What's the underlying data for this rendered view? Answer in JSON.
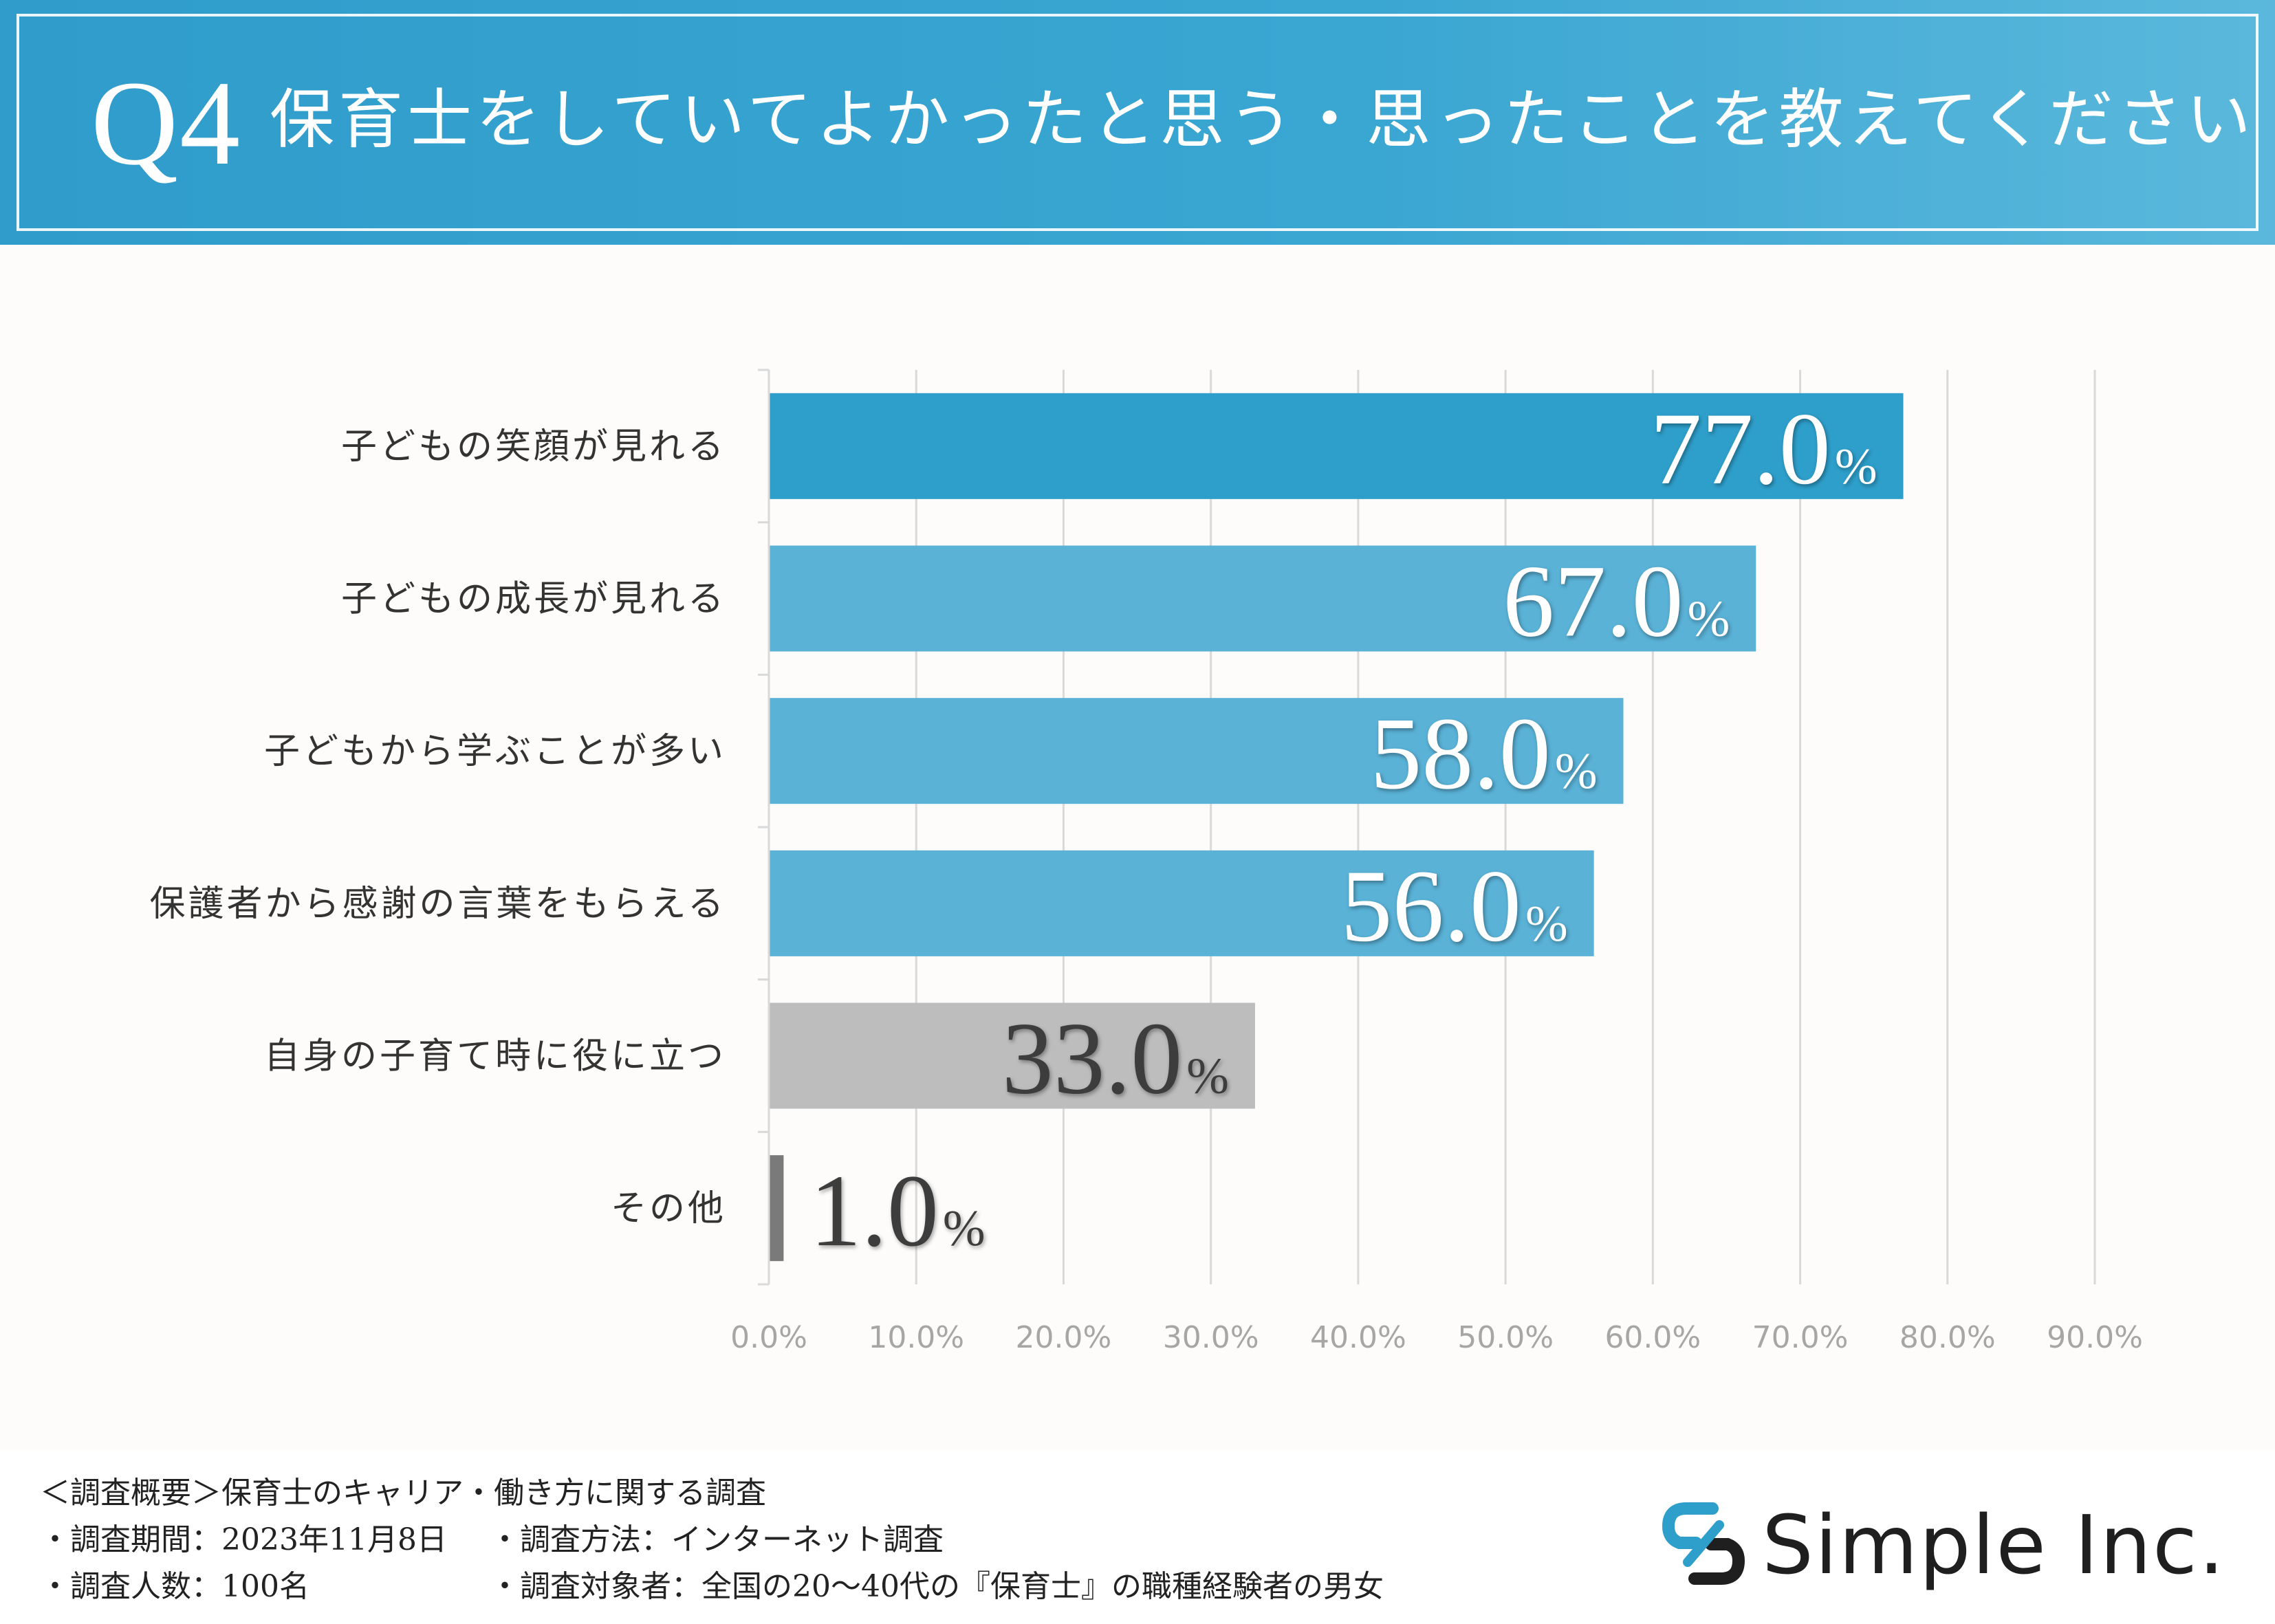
{
  "header": {
    "q_label": "Q4",
    "question": "保育士をしていてよかったと思う・思ったことを教えてください"
  },
  "chart_data": {
    "type": "bar",
    "orientation": "horizontal",
    "title": "保育士をしていてよかったと思う・思ったことを教えてください",
    "categories": [
      "子どもの笑顔が見れる",
      "子どもの成長が見れる",
      "子どもから学ぶことが多い",
      "保護者から感謝の言葉をもらえる",
      "自身の子育て時に役に立つ",
      "その他"
    ],
    "values": [
      77.0,
      67.0,
      58.0,
      56.0,
      33.0,
      1.0
    ],
    "value_labels": [
      "77.0",
      "67.0",
      "58.0",
      "56.0",
      "33.0",
      "1.0"
    ],
    "value_suffix": "%",
    "bar_colors": [
      "#2e9fcb",
      "#5ab2d7",
      "#5ab2d7",
      "#5ab2d7",
      "#bdbdbd",
      "#7a7a7a"
    ],
    "label_colors": [
      "#ffffff",
      "#ffffff",
      "#ffffff",
      "#ffffff",
      "#3d3d3d",
      "#3d3d3d"
    ],
    "xlim": [
      0,
      90
    ],
    "xticks": [
      0,
      10,
      20,
      30,
      40,
      50,
      60,
      70,
      80,
      90
    ],
    "xtick_labels": [
      "0.0%",
      "10.0%",
      "20.0%",
      "30.0%",
      "40.0%",
      "50.0%",
      "60.0%",
      "70.0%",
      "80.0%",
      "90.0%"
    ],
    "grid": true,
    "xlabel": "",
    "ylabel": ""
  },
  "footer": {
    "summary": "＜調査概要＞保育士のキャリア・働き方に関する調査",
    "period": "・調査期間：2023年11月8日",
    "method": "・調査方法：インターネット調査",
    "count": "・調査人数：100名",
    "target": "・調査対象者：全国の20〜40代の『保育士』の職種経験者の男女"
  },
  "logo": {
    "text": "Simple Inc.",
    "icon": "chain-link-s-icon",
    "colors": [
      "#2e9fcb",
      "#1f1f1f"
    ]
  }
}
